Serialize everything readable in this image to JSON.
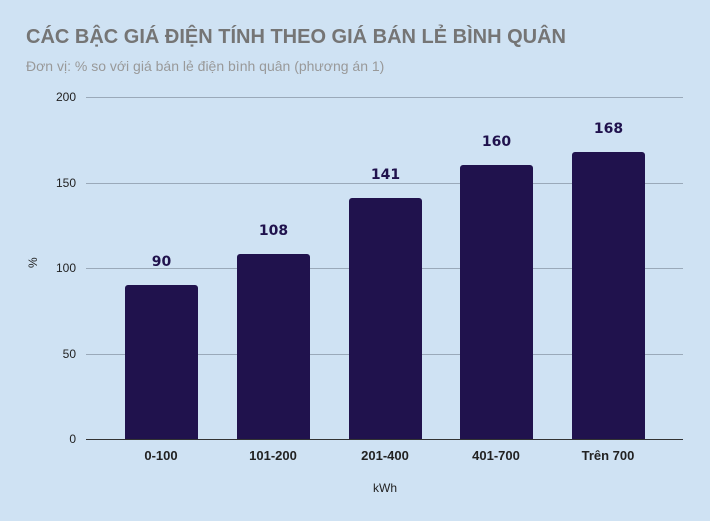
{
  "header": {
    "title": "CÁC BẬC GIÁ ĐIỆN TÍNH THEO GIÁ BÁN LẺ BÌNH QUÂN",
    "subtitle": "Đơn vị: % so với giá bán lẻ điện bình quân (phương án 1)"
  },
  "axes": {
    "xlabel": "kWh",
    "ylabel": "%",
    "yticks": [
      "0",
      "50",
      "100",
      "150",
      "200"
    ]
  },
  "bars": [
    {
      "category": "0-100",
      "value": 90,
      "label": "90"
    },
    {
      "category": "101-200",
      "value": 108,
      "label": "108"
    },
    {
      "category": "201-400",
      "value": 141,
      "label": "141"
    },
    {
      "category": "401-700",
      "value": 160,
      "label": "160"
    },
    {
      "category": "Trên 700",
      "value": 168,
      "label": "168"
    }
  ],
  "colors": {
    "background": "#cfe2f3",
    "bar": "#20124d",
    "title": "#757575",
    "subtitle": "#999999"
  },
  "chart_data": {
    "type": "bar",
    "title": "CÁC BẬC GIÁ ĐIỆN TÍNH THEO GIÁ BÁN LẺ BÌNH QUÂN",
    "subtitle": "Đơn vị: % so với giá bán lẻ điện bình quân (phương án 1)",
    "categories": [
      "0-100",
      "101-200",
      "201-400",
      "401-700",
      "Trên 700"
    ],
    "values": [
      90,
      108,
      141,
      160,
      168
    ],
    "xlabel": "kWh",
    "ylabel": "%",
    "ylim": [
      0,
      200
    ],
    "yticks": [
      0,
      50,
      100,
      150,
      200
    ],
    "grid": true,
    "legend": null,
    "data_labels": true
  }
}
